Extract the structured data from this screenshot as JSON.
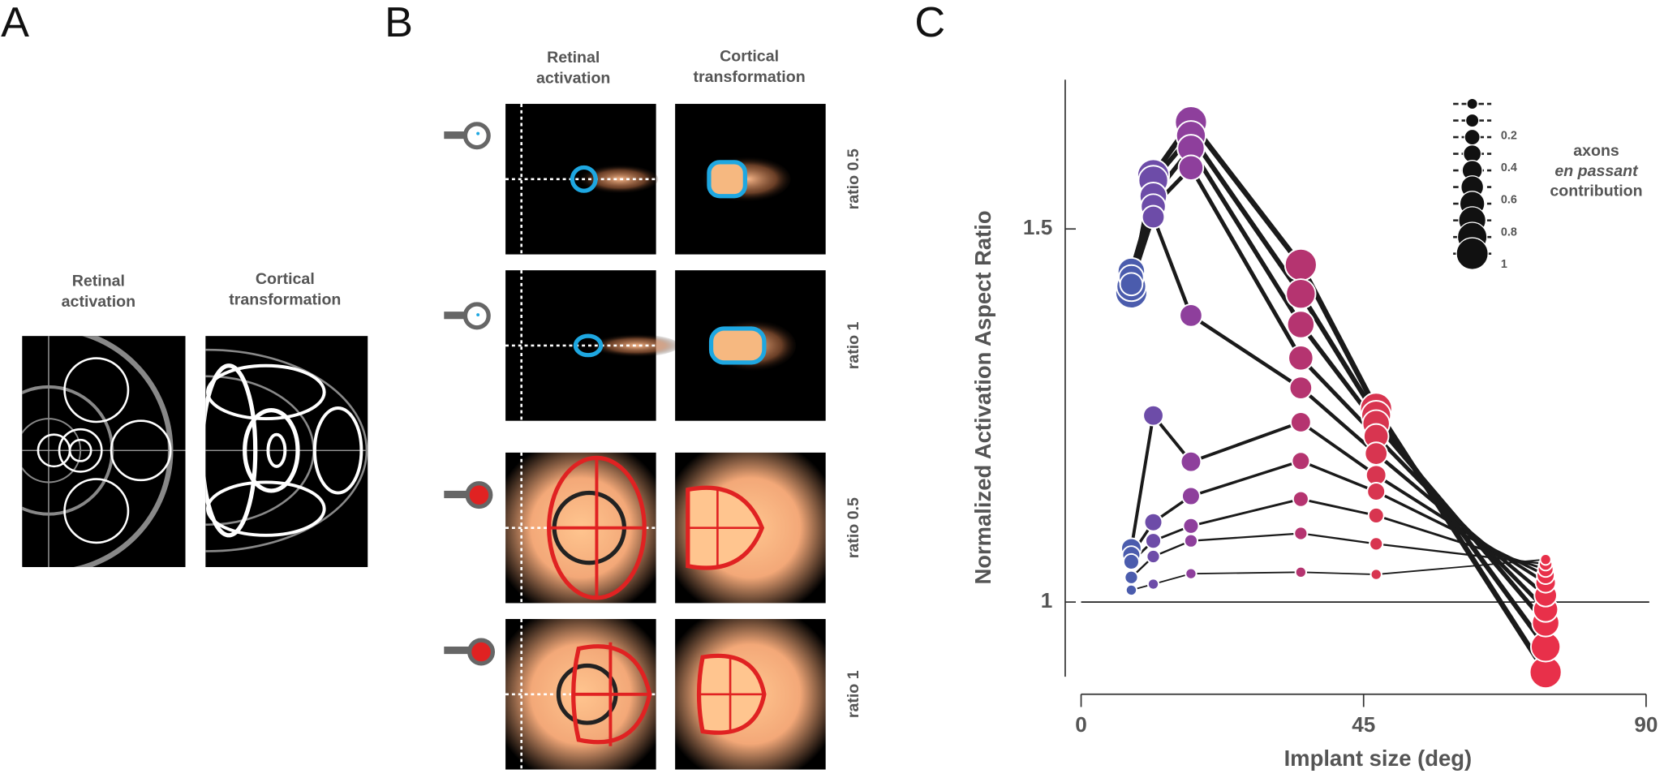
{
  "panel_a": {
    "label": "A",
    "col_titles": [
      "Retinal activation",
      "Cortical transformation"
    ]
  },
  "panel_b": {
    "label": "B",
    "col_titles": [
      "Retinal activation",
      "Cortical transformation"
    ],
    "row_labels": [
      "ratio 0.5",
      "ratio 1",
      "ratio 0.5",
      "ratio 1"
    ]
  },
  "chart_data": {
    "type": "scatter",
    "panel_label": "C",
    "x_label": "Implant size (deg)",
    "y_label": "Normalized Activation Aspect Ratio",
    "x": [
      8,
      11.5,
      17.5,
      35,
      47,
      74
    ],
    "point_colors": [
      "#4b5cad",
      "#6d4ca8",
      "#8e3f9c",
      "#b53470",
      "#d83550",
      "#e8304a"
    ],
    "line_color": "#1a1a1a",
    "series": [
      {
        "size": 0.1,
        "values": [
          1.016,
          1.024,
          1.038,
          1.04,
          1.037,
          1.057
        ]
      },
      {
        "size": 0.2,
        "values": [
          1.033,
          1.061,
          1.082,
          1.092,
          1.078,
          1.051
        ]
      },
      {
        "size": 0.3,
        "values": [
          1.054,
          1.082,
          1.102,
          1.138,
          1.116,
          1.044
        ]
      },
      {
        "size": 0.4,
        "values": [
          1.063,
          1.107,
          1.142,
          1.189,
          1.148,
          1.036
        ]
      },
      {
        "size": 0.5,
        "values": [
          1.072,
          1.25,
          1.188,
          1.241,
          1.17,
          1.026
        ]
      },
      {
        "size": 0.6,
        "values": [
          1.426,
          1.516,
          1.384,
          1.287,
          1.199,
          1.009
        ]
      },
      {
        "size": 0.7,
        "values": [
          1.435,
          1.53,
          1.582,
          1.327,
          1.222,
          0.99
        ]
      },
      {
        "size": 0.8,
        "values": [
          1.443,
          1.544,
          1.608,
          1.372,
          1.239,
          0.972
        ]
      },
      {
        "size": 0.9,
        "values": [
          1.423,
          1.565,
          1.625,
          1.413,
          1.25,
          0.94
        ]
      },
      {
        "size": 1,
        "values": [
          1.415,
          1.572,
          1.643,
          1.452,
          1.259,
          0.906
        ]
      }
    ],
    "size_ticks": [
      0.2,
      0.4,
      0.6,
      0.8,
      1
    ],
    "size_legend_title": [
      "axons",
      "en passant",
      "contribution"
    ],
    "xlim": [
      0,
      90
    ],
    "xticks": [
      0,
      45,
      90
    ],
    "ylim": [
      0.9,
      1.7
    ],
    "yticks": [
      1,
      1.5
    ],
    "reference_line": 1
  }
}
